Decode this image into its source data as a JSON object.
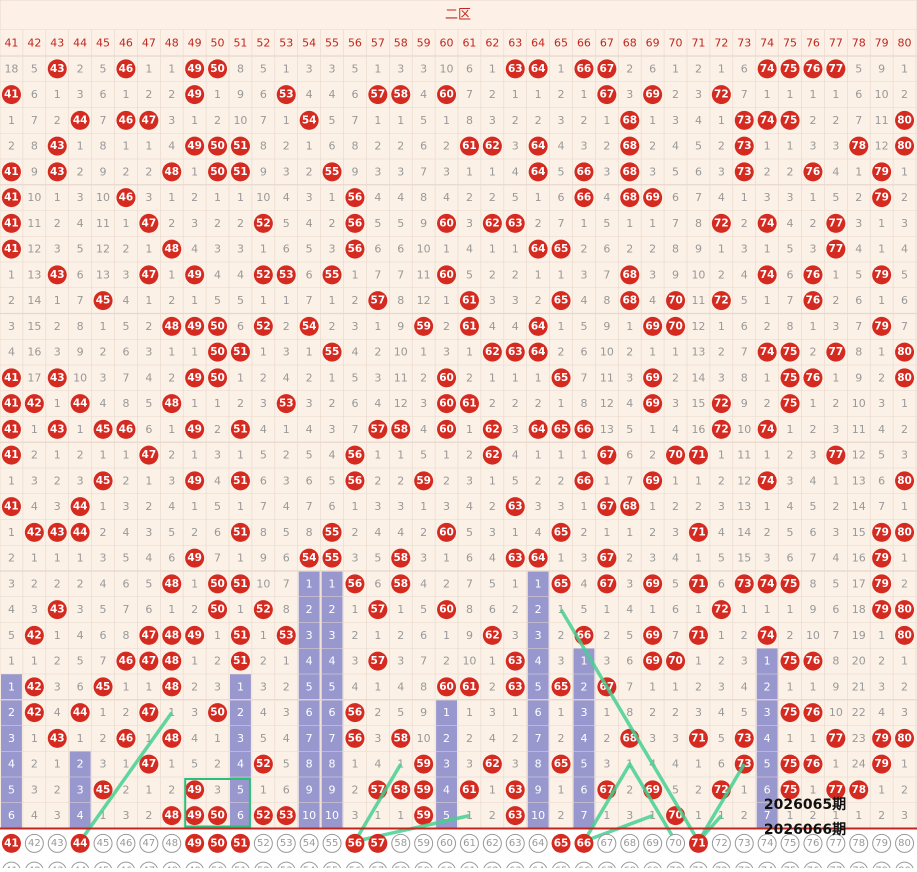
{
  "zone_title": "二区",
  "columns": [
    "41",
    "42",
    "43",
    "44",
    "45",
    "46",
    "47",
    "48",
    "49",
    "50",
    "51",
    "52",
    "53",
    "54",
    "55",
    "56",
    "57",
    "58",
    "59",
    "60",
    "61",
    "62",
    "63",
    "64",
    "65",
    "66",
    "67",
    "68",
    "69",
    "70",
    "71",
    "72",
    "73",
    "74",
    "75",
    "76",
    "77",
    "78",
    "79",
    "80"
  ],
  "colors": {
    "header_bg": "#fdf0e6",
    "header_text": "#c0281f",
    "cell_bg": "#fbf1e7",
    "grid": "#e8d7cc",
    "gray_text": "#999999",
    "ball_red": "#d42a20",
    "bar": "#9898cf",
    "bar_text": "#ffffff",
    "line": "#45d090",
    "box": "#2bbf7a",
    "bottom_line": "#c0281f"
  },
  "labels": {
    "period_a": "2026065期",
    "period_b": "2026066期"
  },
  "chart_data": {
    "type": "table",
    "title": "二区",
    "rows": [
      [
        "18",
        "5",
        "43",
        "2",
        "5",
        "46",
        "1",
        "1",
        "49",
        "50",
        "8",
        "5",
        "1",
        "3",
        "3",
        "5",
        "1",
        "3",
        "3",
        "10",
        "6",
        "1",
        "63",
        "64",
        "1",
        "66",
        "67",
        "2",
        "6",
        "1",
        "2",
        "1",
        "6",
        "74",
        "75",
        "76",
        "77",
        "5",
        "9",
        "1"
      ],
      [
        "41",
        "6",
        "1",
        "3",
        "6",
        "1",
        "2",
        "2",
        "49",
        "1",
        "9",
        "6",
        "53",
        "4",
        "4",
        "6",
        "57",
        "58",
        "4",
        "60",
        "7",
        "2",
        "1",
        "1",
        "2",
        "1",
        "67",
        "3",
        "69",
        "2",
        "3",
        "72",
        "7",
        "1",
        "1",
        "1",
        "1",
        "6",
        "10",
        "2"
      ],
      [
        "1",
        "7",
        "2",
        "44",
        "7",
        "46",
        "47",
        "3",
        "1",
        "2",
        "10",
        "7",
        "1",
        "54",
        "5",
        "7",
        "1",
        "1",
        "5",
        "1",
        "8",
        "3",
        "2",
        "2",
        "3",
        "2",
        "1",
        "68",
        "1",
        "3",
        "4",
        "1",
        "73",
        "74",
        "75",
        "2",
        "2",
        "7",
        "11",
        "80"
      ],
      [
        "2",
        "8",
        "43",
        "1",
        "8",
        "1",
        "1",
        "4",
        "49",
        "50",
        "51",
        "8",
        "2",
        "1",
        "6",
        "8",
        "2",
        "2",
        "6",
        "2",
        "61",
        "62",
        "3",
        "64",
        "4",
        "3",
        "2",
        "68",
        "2",
        "4",
        "5",
        "2",
        "73",
        "1",
        "1",
        "3",
        "3",
        "78",
        "12",
        "80"
      ],
      [
        "41",
        "9",
        "43",
        "2",
        "9",
        "2",
        "2",
        "48",
        "1",
        "50",
        "51",
        "9",
        "3",
        "2",
        "55",
        "9",
        "3",
        "3",
        "7",
        "3",
        "1",
        "1",
        "4",
        "64",
        "5",
        "66",
        "3",
        "68",
        "3",
        "5",
        "6",
        "3",
        "73",
        "2",
        "2",
        "76",
        "4",
        "1",
        "79",
        "1"
      ],
      [
        "41",
        "10",
        "1",
        "3",
        "10",
        "46",
        "3",
        "1",
        "2",
        "1",
        "1",
        "10",
        "4",
        "3",
        "1",
        "56",
        "4",
        "4",
        "8",
        "4",
        "2",
        "2",
        "5",
        "1",
        "6",
        "66",
        "4",
        "68",
        "69",
        "6",
        "7",
        "4",
        "1",
        "3",
        "3",
        "1",
        "5",
        "2",
        "79",
        "2"
      ],
      [
        "41",
        "11",
        "2",
        "4",
        "11",
        "1",
        "47",
        "2",
        "3",
        "2",
        "2",
        "52",
        "5",
        "4",
        "2",
        "56",
        "5",
        "5",
        "9",
        "60",
        "3",
        "62",
        "63",
        "2",
        "7",
        "1",
        "5",
        "1",
        "1",
        "7",
        "8",
        "72",
        "2",
        "74",
        "4",
        "2",
        "77",
        "3",
        "1",
        "3"
      ],
      [
        "41",
        "12",
        "3",
        "5",
        "12",
        "2",
        "1",
        "48",
        "4",
        "3",
        "3",
        "1",
        "6",
        "5",
        "3",
        "56",
        "6",
        "6",
        "10",
        "1",
        "4",
        "1",
        "1",
        "64",
        "65",
        "2",
        "6",
        "2",
        "2",
        "8",
        "9",
        "1",
        "3",
        "1",
        "5",
        "3",
        "77",
        "4",
        "1",
        "4"
      ],
      [
        "1",
        "13",
        "43",
        "6",
        "13",
        "3",
        "47",
        "1",
        "49",
        "4",
        "4",
        "52",
        "53",
        "6",
        "55",
        "1",
        "7",
        "7",
        "11",
        "60",
        "5",
        "2",
        "2",
        "1",
        "1",
        "3",
        "7",
        "68",
        "3",
        "9",
        "10",
        "2",
        "4",
        "74",
        "6",
        "76",
        "1",
        "5",
        "79",
        "5"
      ],
      [
        "2",
        "14",
        "1",
        "7",
        "45",
        "4",
        "1",
        "2",
        "1",
        "5",
        "5",
        "1",
        "1",
        "7",
        "1",
        "2",
        "57",
        "8",
        "12",
        "1",
        "61",
        "3",
        "3",
        "2",
        "65",
        "4",
        "8",
        "68",
        "4",
        "70",
        "11",
        "72",
        "5",
        "1",
        "7",
        "76",
        "2",
        "6",
        "1",
        "6"
      ],
      [
        "3",
        "15",
        "2",
        "8",
        "1",
        "5",
        "2",
        "48",
        "49",
        "50",
        "6",
        "52",
        "2",
        "54",
        "2",
        "3",
        "1",
        "9",
        "59",
        "2",
        "61",
        "4",
        "4",
        "64",
        "1",
        "5",
        "9",
        "1",
        "69",
        "70",
        "12",
        "1",
        "6",
        "2",
        "8",
        "1",
        "3",
        "7",
        "79",
        "7"
      ],
      [
        "4",
        "16",
        "3",
        "9",
        "2",
        "6",
        "3",
        "1",
        "1",
        "50",
        "51",
        "1",
        "3",
        "1",
        "55",
        "4",
        "2",
        "10",
        "1",
        "3",
        "1",
        "62",
        "63",
        "64",
        "2",
        "6",
        "10",
        "2",
        "1",
        "1",
        "13",
        "2",
        "7",
        "74",
        "75",
        "2",
        "77",
        "8",
        "1",
        "80"
      ],
      [
        "41",
        "17",
        "43",
        "10",
        "3",
        "7",
        "4",
        "2",
        "49",
        "50",
        "1",
        "2",
        "4",
        "2",
        "1",
        "5",
        "3",
        "11",
        "2",
        "60",
        "2",
        "1",
        "1",
        "1",
        "65",
        "7",
        "11",
        "3",
        "69",
        "2",
        "14",
        "3",
        "8",
        "1",
        "75",
        "76",
        "1",
        "9",
        "2",
        "80"
      ],
      [
        "41",
        "42",
        "1",
        "44",
        "4",
        "8",
        "5",
        "48",
        "1",
        "1",
        "2",
        "3",
        "53",
        "3",
        "2",
        "6",
        "4",
        "12",
        "3",
        "60",
        "61",
        "2",
        "2",
        "2",
        "1",
        "8",
        "12",
        "4",
        "69",
        "3",
        "15",
        "72",
        "9",
        "2",
        "75",
        "1",
        "2",
        "10",
        "3",
        "1"
      ],
      [
        "41",
        "1",
        "43",
        "1",
        "45",
        "46",
        "6",
        "1",
        "49",
        "2",
        "51",
        "4",
        "1",
        "4",
        "3",
        "7",
        "57",
        "58",
        "4",
        "60",
        "1",
        "62",
        "3",
        "64",
        "65",
        "66",
        "13",
        "5",
        "1",
        "4",
        "16",
        "72",
        "10",
        "74",
        "1",
        "2",
        "3",
        "11",
        "4",
        "2"
      ],
      [
        "41",
        "2",
        "1",
        "2",
        "1",
        "1",
        "47",
        "2",
        "1",
        "3",
        "1",
        "5",
        "2",
        "5",
        "4",
        "56",
        "1",
        "1",
        "5",
        "1",
        "2",
        "62",
        "4",
        "1",
        "1",
        "1",
        "67",
        "6",
        "2",
        "70",
        "71",
        "1",
        "11",
        "1",
        "2",
        "3",
        "77",
        "12",
        "5",
        "3"
      ],
      [
        "1",
        "3",
        "2",
        "3",
        "45",
        "2",
        "1",
        "3",
        "49",
        "4",
        "51",
        "6",
        "3",
        "6",
        "5",
        "56",
        "2",
        "2",
        "59",
        "2",
        "3",
        "1",
        "5",
        "2",
        "2",
        "66",
        "1",
        "7",
        "69",
        "1",
        "1",
        "2",
        "12",
        "74",
        "3",
        "4",
        "1",
        "13",
        "6",
        "80"
      ],
      [
        "41",
        "4",
        "3",
        "44",
        "1",
        "3",
        "2",
        "4",
        "1",
        "5",
        "1",
        "7",
        "4",
        "7",
        "6",
        "1",
        "3",
        "3",
        "1",
        "3",
        "4",
        "2",
        "63",
        "3",
        "3",
        "1",
        "67",
        "68",
        "1",
        "2",
        "2",
        "3",
        "13",
        "1",
        "4",
        "5",
        "2",
        "14",
        "7",
        "1"
      ],
      [
        "1",
        "42",
        "43",
        "44",
        "2",
        "4",
        "3",
        "5",
        "2",
        "6",
        "51",
        "8",
        "5",
        "8",
        "55",
        "2",
        "4",
        "4",
        "2",
        "60",
        "5",
        "3",
        "1",
        "4",
        "65",
        "2",
        "1",
        "1",
        "2",
        "3",
        "71",
        "4",
        "14",
        "2",
        "5",
        "6",
        "3",
        "15",
        "79",
        "80"
      ],
      [
        "2",
        "1",
        "1",
        "1",
        "3",
        "5",
        "4",
        "6",
        "49",
        "7",
        "1",
        "9",
        "6",
        "54",
        "55",
        "3",
        "5",
        "58",
        "3",
        "1",
        "6",
        "4",
        "63",
        "64",
        "1",
        "3",
        "67",
        "2",
        "3",
        "4",
        "1",
        "5",
        "15",
        "3",
        "6",
        "7",
        "4",
        "16",
        "79",
        "1"
      ],
      [
        "3",
        "2",
        "2",
        "2",
        "4",
        "6",
        "5",
        "48",
        "1",
        "50",
        "51",
        "10",
        "7",
        "1",
        "1",
        "56",
        "6",
        "58",
        "4",
        "2",
        "7",
        "5",
        "1",
        "1",
        "65",
        "4",
        "67",
        "3",
        "69",
        "5",
        "71",
        "6",
        "73",
        "74",
        "75",
        "8",
        "5",
        "17",
        "79",
        "2"
      ],
      [
        "4",
        "3",
        "43",
        "3",
        "5",
        "7",
        "6",
        "1",
        "2",
        "50",
        "1",
        "52",
        "8",
        "2",
        "2",
        "1",
        "57",
        "1",
        "5",
        "60",
        "8",
        "6",
        "2",
        "2",
        "1",
        "5",
        "1",
        "4",
        "1",
        "6",
        "1",
        "72",
        "1",
        "1",
        "1",
        "9",
        "6",
        "18",
        "79",
        "80"
      ],
      [
        "5",
        "42",
        "1",
        "4",
        "6",
        "8",
        "47",
        "48",
        "49",
        "1",
        "51",
        "1",
        "53",
        "3",
        "3",
        "2",
        "1",
        "2",
        "6",
        "1",
        "9",
        "62",
        "3",
        "3",
        "2",
        "66",
        "2",
        "5",
        "69",
        "7",
        "71",
        "1",
        "2",
        "74",
        "2",
        "10",
        "7",
        "19",
        "1",
        "80"
      ],
      [
        "1",
        "1",
        "2",
        "5",
        "7",
        "46",
        "47",
        "48",
        "1",
        "2",
        "51",
        "2",
        "1",
        "4",
        "4",
        "3",
        "57",
        "3",
        "7",
        "2",
        "10",
        "1",
        "63",
        "4",
        "3",
        "1",
        "3",
        "6",
        "69",
        "70",
        "1",
        "2",
        "3",
        "1",
        "75",
        "76",
        "8",
        "20",
        "2",
        "1"
      ],
      [
        "1",
        "42",
        "3",
        "6",
        "45",
        "1",
        "1",
        "48",
        "2",
        "3",
        "1",
        "3",
        "2",
        "5",
        "5",
        "4",
        "1",
        "4",
        "8",
        "60",
        "61",
        "2",
        "63",
        "5",
        "65",
        "2",
        "67",
        "7",
        "1",
        "1",
        "2",
        "3",
        "4",
        "2",
        "1",
        "1",
        "9",
        "21",
        "3",
        "2"
      ],
      [
        "2",
        "42",
        "4",
        "44",
        "1",
        "2",
        "47",
        "1",
        "3",
        "50",
        "2",
        "4",
        "3",
        "6",
        "6",
        "56",
        "2",
        "5",
        "9",
        "1",
        "1",
        "3",
        "1",
        "6",
        "1",
        "3",
        "1",
        "8",
        "2",
        "2",
        "3",
        "4",
        "5",
        "3",
        "75",
        "76",
        "10",
        "22",
        "4",
        "3"
      ],
      [
        "3",
        "1",
        "43",
        "1",
        "2",
        "46",
        "1",
        "48",
        "4",
        "1",
        "3",
        "5",
        "4",
        "7",
        "7",
        "56",
        "3",
        "58",
        "10",
        "2",
        "2",
        "4",
        "2",
        "7",
        "2",
        "4",
        "2",
        "68",
        "3",
        "3",
        "71",
        "5",
        "73",
        "4",
        "1",
        "1",
        "77",
        "23",
        "79",
        "80"
      ],
      [
        "4",
        "2",
        "1",
        "2",
        "3",
        "1",
        "47",
        "1",
        "5",
        "2",
        "4",
        "52",
        "5",
        "8",
        "8",
        "1",
        "4",
        "1",
        "59",
        "3",
        "3",
        "62",
        "3",
        "8",
        "65",
        "5",
        "3",
        "1",
        "4",
        "4",
        "1",
        "6",
        "73",
        "5",
        "75",
        "76",
        "1",
        "24",
        "79",
        "1"
      ],
      [
        "5",
        "3",
        "2",
        "3",
        "45",
        "2",
        "1",
        "2",
        "49",
        "3",
        "5",
        "1",
        "6",
        "9",
        "9",
        "2",
        "57",
        "58",
        "59",
        "4",
        "61",
        "1",
        "63",
        "9",
        "1",
        "6",
        "67",
        "2",
        "69",
        "5",
        "2",
        "72",
        "1",
        "6",
        "75",
        "1",
        "77",
        "78",
        "1",
        "2"
      ],
      [
        "6",
        "4",
        "3",
        "4",
        "1",
        "3",
        "2",
        "48",
        "49",
        "50",
        "6",
        "52",
        "53",
        "10",
        "10",
        "3",
        "1",
        "1",
        "59",
        "5",
        "1",
        "2",
        "63",
        "10",
        "2",
        "7",
        "1",
        "3",
        "1",
        "70",
        "1",
        "1",
        "2",
        "7",
        "1",
        "2",
        "1",
        "1",
        "2",
        "3"
      ],
      [
        "41",
        "42",
        "43",
        "44",
        "45",
        "46",
        "47",
        "48",
        "49",
        "50",
        "51",
        "52",
        "53",
        "54",
        "55",
        "56",
        "57",
        "58",
        "59",
        "60",
        "61",
        "62",
        "63",
        "64",
        "65",
        "66",
        "67",
        "68",
        "69",
        "70",
        "71",
        "72",
        "73",
        "74",
        "75",
        "76",
        "77",
        "78",
        "79",
        "80"
      ]
    ],
    "last_row_hits": [
      "41",
      "44",
      "49",
      "50",
      "51",
      "56",
      "57",
      "65",
      "66",
      "71"
    ],
    "bars": [
      6,
      0,
      0,
      3,
      0,
      0,
      0,
      0,
      0,
      0,
      6,
      0,
      0,
      10,
      10,
      0,
      0,
      0,
      0,
      5,
      0,
      0,
      0,
      10,
      0,
      7,
      0,
      0,
      0,
      0,
      0,
      0,
      0,
      7,
      0,
      0,
      0,
      0,
      0,
      0
    ],
    "trend_lines": [
      [
        [
          "44",
          30
        ],
        [
          "48",
          25
        ]
      ],
      [
        "56",
        30
      ],
      [
        "58",
        27
      ],
      [
        [
          "56",
          30
        ],
        [
          "61",
          29
        ]
      ],
      [
        [
          "65",
          21
        ],
        [
          "71",
          30
        ]
      ],
      [
        [
          "66",
          30
        ],
        [
          "68",
          27
        ],
        [
          "70",
          30
        ]
      ],
      [
        [
          "71",
          30
        ],
        [
          "73",
          27
        ]
      ],
      [
        [
          "66",
          30
        ],
        [
          "69",
          29
        ]
      ],
      [
        [
          "71",
          30
        ],
        [
          "72",
          29
        ]
      ]
    ],
    "highlight_box": {
      "from_col": "49",
      "to_col": "51",
      "from_row": 28,
      "to_row": 30
    }
  }
}
